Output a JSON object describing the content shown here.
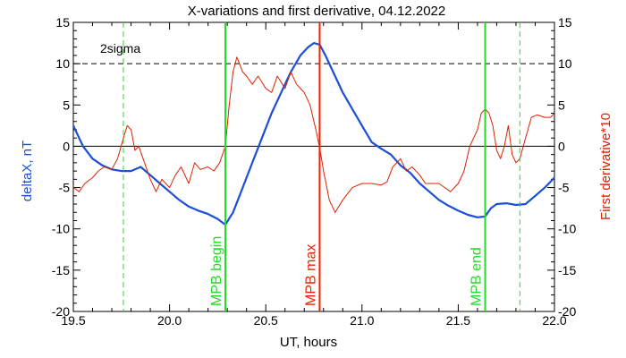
{
  "chart_data": {
    "type": "line",
    "title": "X-variations and first derivative, 04.12.2022",
    "xlabel": "UT, hours",
    "ylabel_left": "deltaX, nT",
    "ylabel_right": "First derivative*10",
    "xlim": [
      19.5,
      22.0
    ],
    "ylim": [
      -20,
      15
    ],
    "x_ticks": [
      19.5,
      20.0,
      20.5,
      21.0,
      21.5,
      22.0
    ],
    "x_tick_labels": [
      "19.5",
      "20.0",
      "20.5",
      "21.0",
      "21.5",
      "22.0"
    ],
    "y_ticks": [
      -20,
      -15,
      -10,
      -5,
      0,
      5,
      10,
      15
    ],
    "y_tick_labels": [
      "-20",
      "-15",
      "-10",
      "-5",
      "0",
      "5",
      "10",
      "15"
    ],
    "grid": false,
    "horizontal_lines": [
      {
        "y": 0,
        "style": "solid",
        "color": "#000000"
      },
      {
        "y": 10,
        "style": "dashed",
        "color": "#000000",
        "label": "2sigma"
      }
    ],
    "vertical_lines": [
      {
        "x": 19.76,
        "style": "dashed",
        "color": "#22dd22",
        "label": ""
      },
      {
        "x": 20.29,
        "style": "solid",
        "color": "#22dd22",
        "label": "MPB begin"
      },
      {
        "x": 20.78,
        "style": "solid",
        "color": "#ee2200",
        "label": "MPB max"
      },
      {
        "x": 21.64,
        "style": "solid",
        "color": "#22dd22",
        "label": "MPB end"
      },
      {
        "x": 21.82,
        "style": "dashed",
        "color": "#22dd22",
        "label": ""
      }
    ],
    "series": [
      {
        "color": "#1a4fd6",
        "x": [
          19.5,
          19.55,
          19.6,
          19.65,
          19.7,
          19.75,
          19.8,
          19.85,
          19.9,
          19.95,
          20.0,
          20.05,
          20.1,
          20.15,
          20.2,
          20.25,
          20.29,
          20.33,
          20.38,
          20.43,
          20.48,
          20.53,
          20.58,
          20.63,
          20.68,
          20.72,
          20.75,
          20.78,
          20.81,
          20.85,
          20.9,
          20.95,
          21.0,
          21.05,
          21.1,
          21.15,
          21.2,
          21.25,
          21.3,
          21.35,
          21.4,
          21.45,
          21.5,
          21.55,
          21.6,
          21.64,
          21.67,
          21.7,
          21.75,
          21.8,
          21.85,
          21.9,
          21.95,
          22.0
        ],
        "values": [
          2.5,
          0.0,
          -1.5,
          -2.3,
          -2.8,
          -3.0,
          -3.0,
          -2.5,
          -3.5,
          -4.5,
          -5.5,
          -6.5,
          -7.3,
          -7.8,
          -8.2,
          -8.8,
          -9.5,
          -8.0,
          -5.0,
          -2.0,
          1.0,
          4.0,
          6.5,
          9.0,
          11.0,
          12.0,
          12.5,
          12.3,
          11.0,
          9.0,
          6.5,
          4.5,
          2.5,
          0.5,
          -0.3,
          -1.0,
          -2.3,
          -3.2,
          -4.5,
          -5.5,
          -6.5,
          -7.2,
          -7.8,
          -8.3,
          -8.6,
          -8.5,
          -7.5,
          -7.0,
          -6.9,
          -7.1,
          -7.0,
          -6.0,
          -5.0,
          -3.8
        ]
      },
      {
        "color": "#dd2200",
        "x": [
          19.5,
          19.53,
          19.56,
          19.6,
          19.63,
          19.66,
          19.7,
          19.73,
          19.76,
          19.78,
          19.8,
          19.82,
          19.84,
          19.87,
          19.9,
          19.93,
          19.96,
          20.0,
          20.03,
          20.06,
          20.1,
          20.13,
          20.16,
          20.2,
          20.23,
          20.26,
          20.29,
          20.31,
          20.33,
          20.35,
          20.38,
          20.4,
          20.43,
          20.46,
          20.5,
          20.53,
          20.56,
          20.6,
          20.63,
          20.66,
          20.7,
          20.73,
          20.76,
          20.78,
          20.8,
          20.83,
          20.86,
          20.9,
          20.95,
          21.0,
          21.05,
          21.1,
          21.13,
          21.16,
          21.2,
          21.23,
          21.26,
          21.3,
          21.33,
          21.36,
          21.4,
          21.43,
          21.46,
          21.5,
          21.53,
          21.56,
          21.6,
          21.62,
          21.64,
          21.66,
          21.68,
          21.7,
          21.72,
          21.74,
          21.76,
          21.78,
          21.8,
          21.82,
          21.85,
          21.88,
          21.91,
          21.95,
          21.98,
          22.0
        ],
        "values": [
          -5.0,
          -5.5,
          -4.5,
          -3.8,
          -3.0,
          -2.5,
          -2.8,
          -1.5,
          1.0,
          2.5,
          2.0,
          -0.5,
          0.0,
          -2.0,
          -4.0,
          -5.5,
          -4.0,
          -5.0,
          -3.5,
          -2.5,
          -4.5,
          -2.0,
          -2.8,
          -2.5,
          -3.0,
          -2.0,
          0.0,
          5.0,
          9.0,
          10.8,
          9.0,
          8.5,
          7.5,
          8.5,
          7.0,
          6.5,
          8.5,
          7.0,
          9.0,
          7.5,
          6.5,
          5.0,
          2.0,
          -0.2,
          -3.0,
          -6.5,
          -8.0,
          -6.5,
          -5.0,
          -4.5,
          -4.5,
          -4.7,
          -4.3,
          -2.5,
          -1.5,
          -3.0,
          -2.5,
          -3.5,
          -4.5,
          -4.5,
          -4.5,
          -5.0,
          -5.5,
          -4.5,
          -3.0,
          0.0,
          2.0,
          4.0,
          4.5,
          4.0,
          2.5,
          -0.5,
          -1.5,
          0.0,
          2.5,
          -1.0,
          -2.0,
          -1.5,
          1.0,
          3.5,
          3.8,
          3.5,
          3.5,
          4.0
        ]
      }
    ],
    "colors": {
      "deltaX": "#1a4fd6",
      "derivative": "#dd2200",
      "mpb_green": "#22dd22",
      "mpb_red": "#ee2200"
    }
  }
}
